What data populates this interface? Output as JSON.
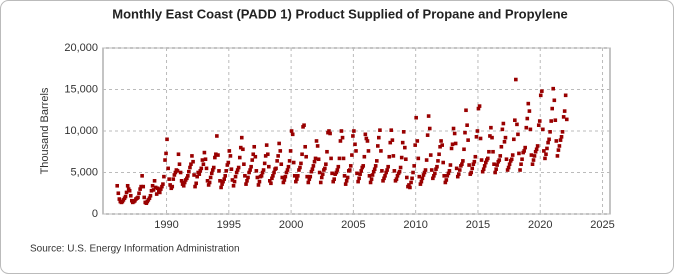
{
  "chart_data": {
    "type": "scatter",
    "title": "Monthly East Coast (PADD 1) Product Supplied of Propane and Propylene",
    "y_label": "Thousand Barrels",
    "source": "Source: U.S. Energy Information Administration",
    "color": "#990000",
    "grid": true,
    "xlim": [
      1984.9,
      2025.6
    ],
    "ylim": [
      0,
      20000
    ],
    "xticks": [
      1990,
      1995,
      2000,
      2005,
      2010,
      2015,
      2020,
      2025
    ],
    "yticks": [
      0,
      {
        "value": 5000,
        "label": "5,000"
      },
      {
        "value": 10000,
        "label": "10,000"
      },
      {
        "value": 15000,
        "label": "15,000"
      },
      {
        "value": 20000,
        "label": "20,000"
      }
    ],
    "x": [
      1986.04,
      1986.13,
      1986.21,
      1986.29,
      1986.38,
      1986.46,
      1986.54,
      1986.63,
      1986.71,
      1986.79,
      1986.88,
      1986.96,
      1987.04,
      1987.13,
      1987.21,
      1987.29,
      1987.38,
      1987.46,
      1987.54,
      1987.63,
      1987.71,
      1987.79,
      1987.88,
      1987.96,
      1988.04,
      1988.13,
      1988.21,
      1988.29,
      1988.38,
      1988.46,
      1988.54,
      1988.63,
      1988.71,
      1988.79,
      1988.88,
      1988.96,
      1989.04,
      1989.13,
      1989.21,
      1989.29,
      1989.38,
      1989.46,
      1989.54,
      1989.63,
      1989.71,
      1989.79,
      1989.88,
      1989.96,
      1990.04,
      1990.13,
      1990.21,
      1990.29,
      1990.38,
      1990.46,
      1990.54,
      1990.63,
      1990.71,
      1990.79,
      1990.88,
      1990.96,
      1991.04,
      1991.13,
      1991.21,
      1991.29,
      1991.38,
      1991.46,
      1991.54,
      1991.63,
      1991.71,
      1991.79,
      1991.88,
      1991.96,
      1992.04,
      1992.13,
      1992.21,
      1992.29,
      1992.38,
      1992.46,
      1992.54,
      1992.63,
      1992.71,
      1992.79,
      1992.88,
      1992.96,
      1993.04,
      1993.13,
      1993.21,
      1993.29,
      1993.38,
      1993.46,
      1993.54,
      1993.63,
      1993.71,
      1993.79,
      1993.88,
      1993.96,
      1994.04,
      1994.13,
      1994.21,
      1994.29,
      1994.38,
      1994.46,
      1994.54,
      1994.63,
      1994.71,
      1994.79,
      1994.88,
      1994.96,
      1995.04,
      1995.13,
      1995.21,
      1995.29,
      1995.38,
      1995.46,
      1995.54,
      1995.63,
      1995.71,
      1995.79,
      1995.88,
      1995.96,
      1996.04,
      1996.13,
      1996.21,
      1996.29,
      1996.38,
      1996.46,
      1996.54,
      1996.63,
      1996.71,
      1996.79,
      1996.88,
      1996.96,
      1997.04,
      1997.13,
      1997.21,
      1997.29,
      1997.38,
      1997.46,
      1997.54,
      1997.63,
      1997.71,
      1997.79,
      1997.88,
      1997.96,
      1998.04,
      1998.13,
      1998.21,
      1998.29,
      1998.38,
      1998.46,
      1998.54,
      1998.63,
      1998.71,
      1998.79,
      1998.88,
      1998.96,
      1999.04,
      1999.13,
      1999.21,
      1999.29,
      1999.38,
      1999.46,
      1999.54,
      1999.63,
      1999.71,
      1999.79,
      1999.88,
      1999.96,
      2000.04,
      2000.13,
      2000.21,
      2000.29,
      2000.38,
      2000.46,
      2000.54,
      2000.63,
      2000.71,
      2000.79,
      2000.88,
      2000.96,
      2001.04,
      2001.13,
      2001.21,
      2001.29,
      2001.38,
      2001.46,
      2001.54,
      2001.63,
      2001.71,
      2001.79,
      2001.88,
      2001.96,
      2002.04,
      2002.13,
      2002.21,
      2002.29,
      2002.38,
      2002.46,
      2002.54,
      2002.63,
      2002.71,
      2002.79,
      2002.88,
      2002.96,
      2003.04,
      2003.13,
      2003.21,
      2003.29,
      2003.38,
      2003.46,
      2003.54,
      2003.63,
      2003.71,
      2003.79,
      2003.88,
      2003.96,
      2004.04,
      2004.13,
      2004.21,
      2004.29,
      2004.38,
      2004.46,
      2004.54,
      2004.63,
      2004.71,
      2004.79,
      2004.88,
      2004.96,
      2005.04,
      2005.13,
      2005.21,
      2005.29,
      2005.38,
      2005.46,
      2005.54,
      2005.63,
      2005.71,
      2005.79,
      2005.88,
      2005.96,
      2006.04,
      2006.13,
      2006.21,
      2006.29,
      2006.38,
      2006.46,
      2006.54,
      2006.63,
      2006.71,
      2006.79,
      2006.88,
      2006.96,
      2007.04,
      2007.13,
      2007.21,
      2007.29,
      2007.38,
      2007.46,
      2007.54,
      2007.63,
      2007.71,
      2007.79,
      2007.88,
      2007.96,
      2008.04,
      2008.13,
      2008.21,
      2008.29,
      2008.38,
      2008.46,
      2008.54,
      2008.63,
      2008.71,
      2008.79,
      2008.88,
      2008.96,
      2009.04,
      2009.13,
      2009.21,
      2009.29,
      2009.38,
      2009.46,
      2009.54,
      2009.63,
      2009.71,
      2009.79,
      2009.88,
      2009.96,
      2010.04,
      2010.13,
      2010.21,
      2010.29,
      2010.38,
      2010.46,
      2010.54,
      2010.63,
      2010.71,
      2010.79,
      2010.88,
      2010.96,
      2011.04,
      2011.13,
      2011.21,
      2011.29,
      2011.38,
      2011.46,
      2011.54,
      2011.63,
      2011.71,
      2011.79,
      2011.88,
      2011.96,
      2012.04,
      2012.13,
      2012.21,
      2012.29,
      2012.38,
      2012.46,
      2012.54,
      2012.63,
      2012.71,
      2012.79,
      2012.88,
      2012.96,
      2013.04,
      2013.13,
      2013.21,
      2013.29,
      2013.38,
      2013.46,
      2013.54,
      2013.63,
      2013.71,
      2013.79,
      2013.88,
      2013.96,
      2014.04,
      2014.13,
      2014.21,
      2014.29,
      2014.38,
      2014.46,
      2014.54,
      2014.63,
      2014.71,
      2014.79,
      2014.88,
      2014.96,
      2015.04,
      2015.13,
      2015.21,
      2015.29,
      2015.38,
      2015.46,
      2015.54,
      2015.63,
      2015.71,
      2015.79,
      2015.88,
      2015.96,
      2016.04,
      2016.13,
      2016.21,
      2016.29,
      2016.38,
      2016.46,
      2016.54,
      2016.63,
      2016.71,
      2016.79,
      2016.88,
      2016.96,
      2017.04,
      2017.13,
      2017.21,
      2017.29,
      2017.38,
      2017.46,
      2017.54,
      2017.63,
      2017.71,
      2017.79,
      2017.88,
      2017.96,
      2018.04,
      2018.13,
      2018.21,
      2018.29,
      2018.38,
      2018.46,
      2018.54,
      2018.63,
      2018.71,
      2018.79,
      2018.88,
      2018.96,
      2019.04,
      2019.13,
      2019.21,
      2019.29,
      2019.38,
      2019.46,
      2019.54,
      2019.63,
      2019.71,
      2019.79,
      2019.88,
      2019.96,
      2020.04,
      2020.13,
      2020.21,
      2020.29,
      2020.38,
      2020.46,
      2020.54,
      2020.63,
      2020.71,
      2020.79,
      2020.88,
      2020.96,
      2021.04,
      2021.13,
      2021.21,
      2021.29,
      2021.38,
      2021.46,
      2021.54,
      2021.63,
      2021.71,
      2021.79,
      2021.88,
      2021.96,
      2022.04,
      2022.13
    ],
    "values": [
      3400,
      2500,
      1800,
      1500,
      1400,
      1500,
      1700,
      1900,
      2100,
      2600,
      3400,
      3000,
      2800,
      2200,
      1600,
      1400,
      1500,
      1600,
      1800,
      1900,
      2000,
      2500,
      3000,
      3300,
      4600,
      3300,
      2000,
      1400,
      1300,
      1500,
      1700,
      1900,
      2200,
      2800,
      3400,
      2900,
      4000,
      3200,
      2400,
      3100,
      2800,
      2600,
      3000,
      3300,
      3600,
      4500,
      6500,
      7300,
      9000,
      5500,
      4200,
      3500,
      3100,
      3300,
      4200,
      4700,
      5000,
      5300,
      5200,
      7200,
      6000,
      5000,
      4000,
      3600,
      3400,
      3800,
      4100,
      4300,
      4600,
      5100,
      5600,
      6000,
      7000,
      6300,
      4700,
      3300,
      3700,
      4500,
      5000,
      4800,
      5200,
      5500,
      6500,
      6000,
      7400,
      6600,
      5500,
      4000,
      3500,
      3800,
      4400,
      4900,
      5300,
      5600,
      6800,
      7200,
      9400,
      7100,
      5200,
      4000,
      3200,
      3600,
      3900,
      4200,
      4600,
      5200,
      5900,
      6200,
      7600,
      7000,
      5400,
      4100,
      3400,
      3900,
      4500,
      5000,
      5300,
      5600,
      6800,
      8000,
      9200,
      7800,
      6000,
      4600,
      3600,
      4000,
      4400,
      5000,
      5300,
      5700,
      6500,
      7200,
      8100,
      6900,
      5200,
      4400,
      3500,
      3900,
      4500,
      4600,
      5000,
      5300,
      6100,
      7000,
      8300,
      7200,
      5700,
      4000,
      3700,
      4300,
      4600,
      5000,
      5400,
      5500,
      6400,
      7000,
      8500,
      7600,
      6000,
      4400,
      3800,
      4100,
      4500,
      5000,
      5300,
      5700,
      6400,
      7600,
      10000,
      9600,
      6200,
      4600,
      3900,
      4200,
      4600,
      5300,
      5600,
      6100,
      7200,
      10500,
      10700,
      8100,
      6900,
      4500,
      3800,
      4200,
      4500,
      5100,
      5400,
      5800,
      6300,
      6700,
      8800,
      8200,
      6600,
      5000,
      3800,
      4400,
      4800,
      5300,
      5500,
      6000,
      7500,
      9800,
      10000,
      9700,
      6700,
      4900,
      3900,
      4200,
      4800,
      5000,
      5300,
      5700,
      6700,
      8800,
      10000,
      9200,
      6700,
      4600,
      3600,
      4000,
      4400,
      5200,
      5300,
      5800,
      7100,
      9400,
      10000,
      8400,
      7600,
      4900,
      3900,
      4300,
      4800,
      5200,
      5600,
      5800,
      6900,
      9600,
      9100,
      8800,
      7600,
      4600,
      3800,
      4200,
      4700,
      5100,
      5400,
      5800,
      6400,
      8200,
      9200,
      10100,
      7600,
      5200,
      4000,
      4300,
      4600,
      5000,
      5300,
      5700,
      6900,
      8600,
      10100,
      8900,
      7000,
      5200,
      4000,
      4200,
      4600,
      4900,
      5100,
      5600,
      6800,
      8600,
      9900,
      8000,
      6600,
      4400,
      3300,
      3500,
      3200,
      3800,
      4300,
      5000,
      5800,
      8300,
      11600,
      8800,
      6700,
      4500,
      3600,
      3900,
      4300,
      4700,
      5000,
      5300,
      6500,
      9500,
      11800,
      10300,
      7100,
      5300,
      4300,
      4600,
      4900,
      5400,
      5700,
      6400,
      7200,
      8100,
      8800,
      8300,
      6200,
      4600,
      3800,
      4100,
      4600,
      4900,
      5200,
      5900,
      7900,
      8400,
      10300,
      9700,
      8500,
      5500,
      4500,
      4800,
      5300,
      5800,
      6000,
      6400,
      7800,
      9800,
      12500,
      10700,
      8900,
      5900,
      4800,
      5000,
      5500,
      6000,
      6300,
      6900,
      9300,
      10000,
      12700,
      13000,
      9100,
      6500,
      5100,
      5400,
      5800,
      6200,
      6500,
      6700,
      7500,
      9400,
      10400,
      9200,
      7500,
      6000,
      5000,
      5400,
      5900,
      6300,
      6500,
      7000,
      8100,
      10200,
      10900,
      8700,
      9200,
      6600,
      5300,
      5600,
      6000,
      6400,
      6600,
      7100,
      9000,
      11300,
      16200,
      10800,
      9600,
      7300,
      5300,
      6000,
      6600,
      7400,
      7600,
      8000,
      10400,
      11500,
      13300,
      12400,
      10200,
      7100,
      6000,
      6500,
      7000,
      7500,
      7800,
      8200,
      10700,
      11200,
      14300,
      14800,
      10200,
      7600,
      6700,
      7200,
      7900,
      8600,
      9000,
      9900,
      11200,
      12700,
      15100,
      13700,
      11300,
      8800,
      7000,
      7700,
      8200,
      8900,
      9300,
      9900,
      11700,
      12400,
      14300,
      11400
    ]
  }
}
